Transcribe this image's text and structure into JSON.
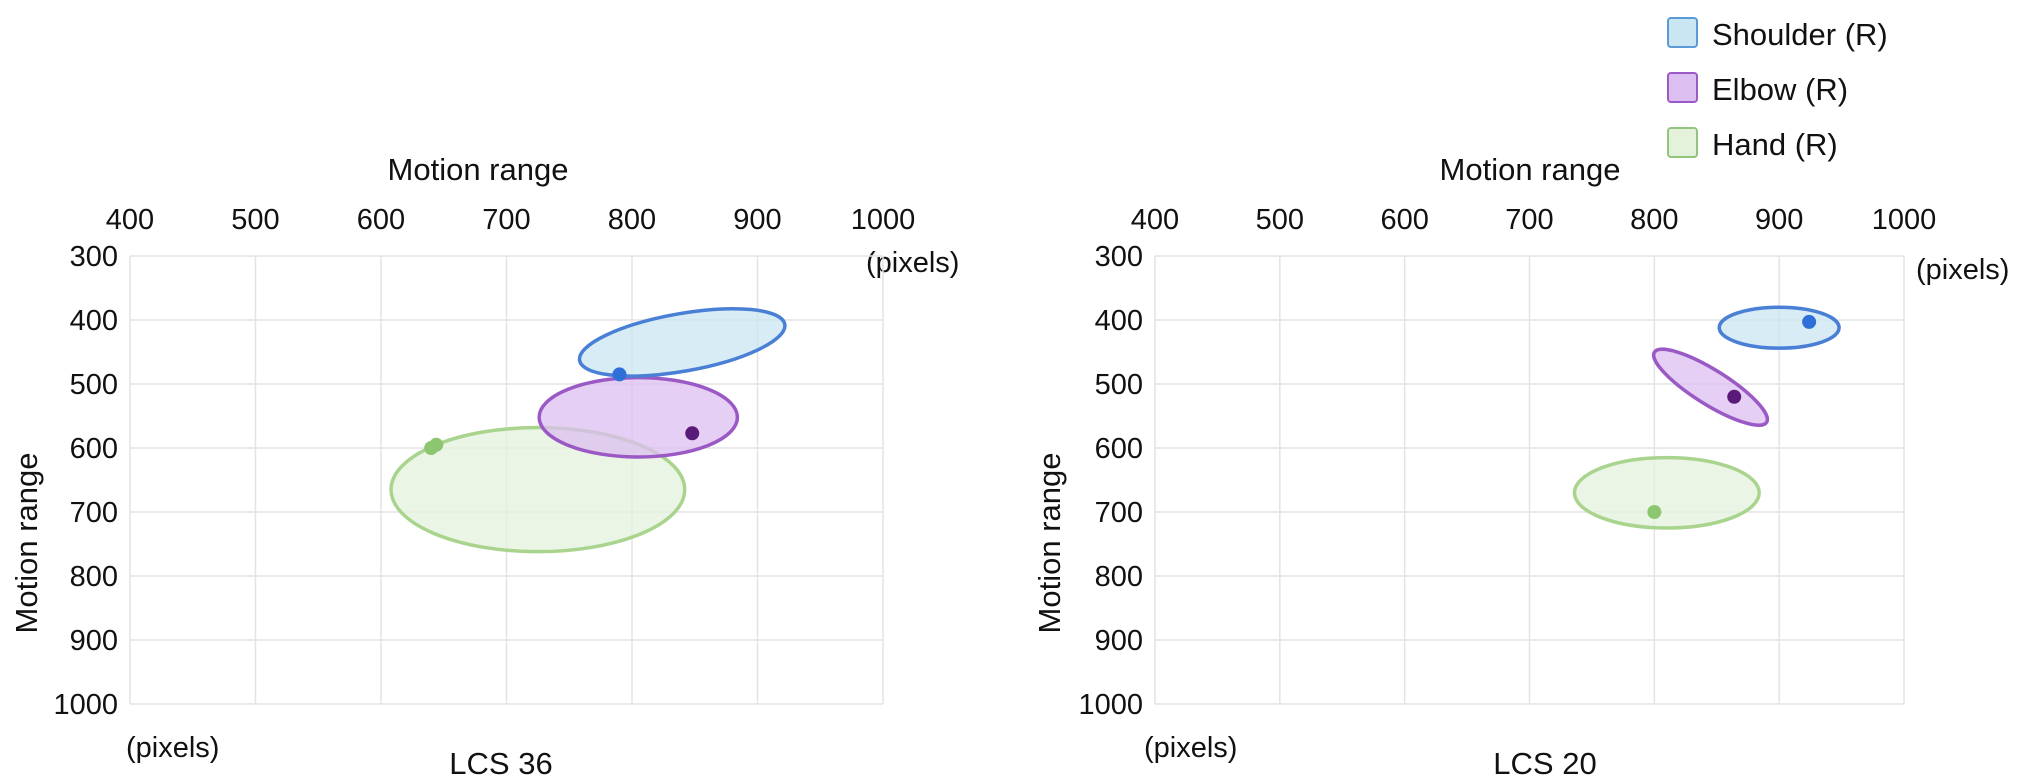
{
  "legend": {
    "items": [
      {
        "label": "Shoulder (R)",
        "fill": "#c9e6f2",
        "stroke": "#5b9bd5"
      },
      {
        "label": "Elbow (R)",
        "fill": "#dcbff0",
        "stroke": "#9b59c6"
      },
      {
        "label": "Hand (R)",
        "fill": "#e4f2dc",
        "stroke": "#92c47d"
      }
    ]
  },
  "chart_data": [
    {
      "type": "scatter",
      "caption": "LCS 36",
      "x_axis_title": "Motion range",
      "y_axis_title": "Motion range",
      "x_unit": "(pixels)",
      "y_unit": "(pixels)",
      "xlim": [
        400,
        1000
      ],
      "ylim": [
        300,
        1000
      ],
      "x_ticks": [
        400,
        500,
        600,
        700,
        800,
        900,
        1000
      ],
      "y_ticks": [
        300,
        400,
        500,
        600,
        700,
        800,
        900,
        1000
      ],
      "y_inverted": true,
      "x_axis_position": "top",
      "grid": true,
      "series": [
        {
          "name": "Shoulder (R)",
          "color": "#2f6fd8",
          "fill": "#c9e6f2",
          "stroke": "#4a7fd6",
          "point": [
            790,
            485
          ],
          "ellipse": {
            "cx": 840,
            "cy": 435,
            "rx": 83,
            "ry": 45,
            "rotation": -10
          }
        },
        {
          "name": "Elbow (R)",
          "color": "#5a1a7a",
          "fill": "#dcbff0",
          "stroke": "#9b59c6",
          "point": [
            848,
            577
          ],
          "ellipse": {
            "cx": 805,
            "cy": 552,
            "rx": 79,
            "ry": 62,
            "rotation": 0
          }
        },
        {
          "name": "Hand (R)",
          "color": "#8cc66f",
          "fill": "#e4f2dc",
          "stroke": "#a9d48e",
          "point": [
            640,
            600
          ],
          "point2": [
            644,
            595
          ],
          "ellipse": {
            "cx": 725,
            "cy": 665,
            "rx": 117,
            "ry": 97,
            "rotation": 0
          }
        }
      ]
    },
    {
      "type": "scatter",
      "caption": "LCS 20",
      "x_axis_title": "Motion range",
      "y_axis_title": "Motion range",
      "x_unit": "(pixels)",
      "y_unit": "(pixels)",
      "xlim": [
        400,
        1000
      ],
      "ylim": [
        300,
        1000
      ],
      "x_ticks": [
        400,
        500,
        600,
        700,
        800,
        900,
        1000
      ],
      "y_ticks": [
        300,
        400,
        500,
        600,
        700,
        800,
        900,
        1000
      ],
      "y_inverted": true,
      "x_axis_position": "top",
      "grid": true,
      "series": [
        {
          "name": "Shoulder (R)",
          "color": "#2f6fd8",
          "fill": "#c9e6f2",
          "stroke": "#4a7fd6",
          "point": [
            924,
            403
          ],
          "ellipse": {
            "cx": 900,
            "cy": 412,
            "rx": 48,
            "ry": 32,
            "rotation": 0
          }
        },
        {
          "name": "Elbow (R)",
          "color": "#5a1a7a",
          "fill": "#dcbff0",
          "stroke": "#9b59c6",
          "point": [
            864,
            520
          ],
          "ellipse": {
            "cx": 845,
            "cy": 505,
            "rx": 53,
            "ry": 27,
            "rotation": 32
          }
        },
        {
          "name": "Hand (R)",
          "color": "#8cc66f",
          "fill": "#e4f2dc",
          "stroke": "#a9d48e",
          "point": [
            800,
            700
          ],
          "ellipse": {
            "cx": 810,
            "cy": 670,
            "rx": 74,
            "ry": 55,
            "rotation": 0
          }
        }
      ]
    }
  ]
}
